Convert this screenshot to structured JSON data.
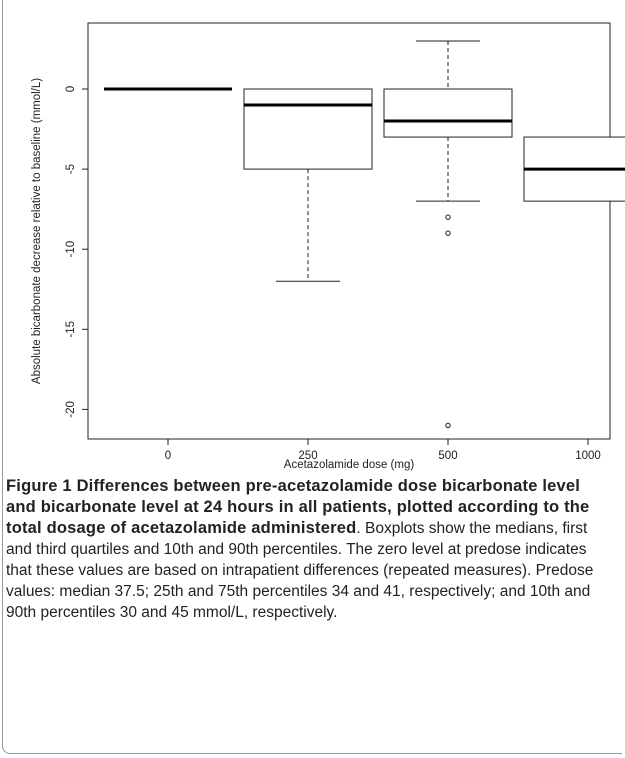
{
  "chart_data": {
    "type": "box",
    "xlabel": "Acetazolamide dose (mg)",
    "ylabel": "Absolute bicarbonate decrease relative to baseline (mmol/L)",
    "categories": [
      "0",
      "250",
      "500",
      "1000"
    ],
    "ylim": [
      -22,
      3.5
    ],
    "yticks": [
      0,
      -5,
      -10,
      -15,
      -20
    ],
    "ytick_labels": [
      "0",
      "-5",
      "-10",
      "-15",
      "-20"
    ],
    "grid": false,
    "boxes": [
      {
        "category": "0",
        "lower_whisker": 0,
        "q1": 0,
        "median": 0,
        "q3": 0,
        "upper_whisker": 0,
        "outliers": []
      },
      {
        "category": "250",
        "lower_whisker": -12,
        "q1": -5,
        "median": -1,
        "q3": 0,
        "upper_whisker": 0,
        "outliers": []
      },
      {
        "category": "500",
        "lower_whisker": -7,
        "q1": -3,
        "median": -2,
        "q3": 0,
        "upper_whisker": 3,
        "outliers": [
          -8,
          -9,
          -21
        ]
      },
      {
        "category": "1000",
        "lower_whisker": -7,
        "q1": -7,
        "median": -5,
        "q3": -3,
        "upper_whisker": -3,
        "outliers": []
      }
    ]
  },
  "caption": {
    "bold": "Figure 1 Differences between pre-acetazolamide dose bicarbonate level and bicarbonate level at 24 hours in all patients, plotted according to the total dosage of acetazolamide administered",
    "text": ". Boxplots show the medians, first and third quartiles and 10th and 90th percentiles. The zero level at predose indicates that these values are based on intrapatient differences (repeated measures). Predose values: median 37.5; 25th and 75th percentiles 34 and 41, respectively; and 10th and 90th percentiles 30 and 45 mmol/L, respectively."
  },
  "colors": {
    "box_stroke": "#222222",
    "median": "#000000"
  }
}
